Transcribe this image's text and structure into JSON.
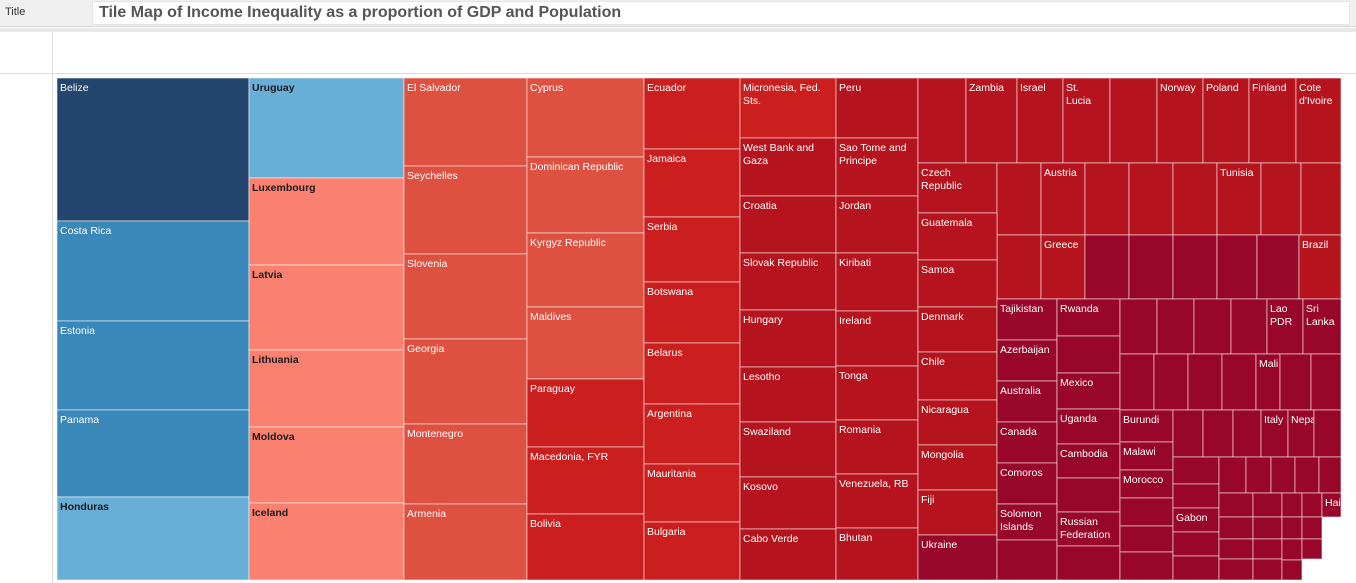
{
  "header": {
    "caption": "Title",
    "title": "Tile Map of Income Inequality as a proportion of GDP and Population"
  },
  "colors": {
    "navy": "#24456d",
    "blue_mid": "#3a87b9",
    "blue_light": "#68afd8",
    "salmon": "#fa8070",
    "red_orange": "#de5040",
    "red": "#cb1f1f",
    "red_deep": "#b5141e",
    "crimson": "#98062a"
  },
  "chart_data": {
    "type": "treemap",
    "title": "Tile Map of Income Inequality as a proportion of GDP and Population",
    "legend": "none",
    "tiles": [
      {
        "label": "Belize",
        "color": "navy"
      },
      {
        "label": "Costa Rica",
        "color": "blue_mid"
      },
      {
        "label": "Estonia",
        "color": "blue_mid"
      },
      {
        "label": "Panama",
        "color": "blue_mid"
      },
      {
        "label": "Honduras",
        "color": "blue_light"
      },
      {
        "label": "Uruguay",
        "color": "blue_light"
      },
      {
        "label": "Luxembourg",
        "color": "salmon"
      },
      {
        "label": "Latvia",
        "color": "salmon"
      },
      {
        "label": "Lithuania",
        "color": "salmon"
      },
      {
        "label": "Moldova",
        "color": "salmon"
      },
      {
        "label": "Iceland",
        "color": "salmon"
      },
      {
        "label": "El Salvador",
        "color": "red_orange"
      },
      {
        "label": "Seychelles",
        "color": "red_orange"
      },
      {
        "label": "Slovenia",
        "color": "red_orange"
      },
      {
        "label": "Georgia",
        "color": "red_orange"
      },
      {
        "label": "Montenegro",
        "color": "red_orange"
      },
      {
        "label": "Armenia",
        "color": "red_orange"
      },
      {
        "label": "Cyprus",
        "color": "red_orange"
      },
      {
        "label": "Dominican Republic",
        "color": "red_orange"
      },
      {
        "label": "Kyrgyz Republic",
        "color": "red_orange"
      },
      {
        "label": "Maldives",
        "color": "red_orange"
      },
      {
        "label": "Paraguay",
        "color": "red"
      },
      {
        "label": "Macedonia, FYR",
        "color": "red"
      },
      {
        "label": "Bolivia",
        "color": "red"
      },
      {
        "label": "Ecuador",
        "color": "red"
      },
      {
        "label": "Jamaica",
        "color": "red"
      },
      {
        "label": "Serbia",
        "color": "red"
      },
      {
        "label": "Botswana",
        "color": "red"
      },
      {
        "label": "Belarus",
        "color": "red"
      },
      {
        "label": "Argentina",
        "color": "red"
      },
      {
        "label": "Mauritania",
        "color": "red"
      },
      {
        "label": "Bulgaria",
        "color": "red"
      },
      {
        "label": "Micronesia, Fed. Sts.",
        "color": "red"
      },
      {
        "label": "West Bank and Gaza",
        "color": "red_deep"
      },
      {
        "label": "Croatia",
        "color": "red_deep"
      },
      {
        "label": "Slovak Republic",
        "color": "red_deep"
      },
      {
        "label": "Hungary",
        "color": "red_deep"
      },
      {
        "label": "Lesotho",
        "color": "red_deep"
      },
      {
        "label": "Swaziland",
        "color": "red_deep"
      },
      {
        "label": "Kosovo",
        "color": "red_deep"
      },
      {
        "label": "Cabo Verde",
        "color": "red_deep"
      },
      {
        "label": "Peru",
        "color": "red_deep"
      },
      {
        "label": "Sao Tome and Principe",
        "color": "red_deep"
      },
      {
        "label": "Jordan",
        "color": "red_deep"
      },
      {
        "label": "Kiribati",
        "color": "red_deep"
      },
      {
        "label": "Ireland",
        "color": "red_deep"
      },
      {
        "label": "Tonga",
        "color": "red_deep"
      },
      {
        "label": "Romania",
        "color": "red_deep"
      },
      {
        "label": "Venezuela, RB",
        "color": "red_deep"
      },
      {
        "label": "Bhutan",
        "color": "red_deep"
      },
      {
        "label": "",
        "color": "red_deep"
      },
      {
        "label": "Zambia",
        "color": "red_deep"
      },
      {
        "label": "Israel",
        "color": "red_deep"
      },
      {
        "label": "St. Lucia",
        "color": "red_deep"
      },
      {
        "label": "",
        "color": "red_deep"
      },
      {
        "label": "Norway",
        "color": "red_deep"
      },
      {
        "label": "Poland",
        "color": "red_deep"
      },
      {
        "label": "Finland",
        "color": "red_deep"
      },
      {
        "label": "Cote d'Ivoire",
        "color": "red_deep"
      },
      {
        "label": "Czech Republic",
        "color": "red_deep"
      },
      {
        "label": "",
        "color": "red_deep"
      },
      {
        "label": "Austria",
        "color": "red_deep"
      },
      {
        "label": "",
        "color": "red_deep"
      },
      {
        "label": "",
        "color": "red_deep"
      },
      {
        "label": "",
        "color": "red_deep"
      },
      {
        "label": "Tunisia",
        "color": "red_deep"
      },
      {
        "label": "",
        "color": "red_deep"
      },
      {
        "label": "",
        "color": "red_deep"
      },
      {
        "label": "",
        "color": "red_deep"
      },
      {
        "label": "Greece",
        "color": "red_deep"
      },
      {
        "label": "",
        "color": "crimson"
      },
      {
        "label": "",
        "color": "crimson"
      },
      {
        "label": "",
        "color": "crimson"
      },
      {
        "label": "",
        "color": "crimson"
      },
      {
        "label": "",
        "color": "crimson"
      },
      {
        "label": "Brazil",
        "color": "red_deep"
      },
      {
        "label": "Guatemala",
        "color": "red_deep"
      },
      {
        "label": "Samoa",
        "color": "red_deep"
      },
      {
        "label": "Denmark",
        "color": "red_deep"
      },
      {
        "label": "Chile",
        "color": "red_deep"
      },
      {
        "label": "Nicaragua",
        "color": "red_deep"
      },
      {
        "label": "Mongolia",
        "color": "red_deep"
      },
      {
        "label": "Fiji",
        "color": "red_deep"
      },
      {
        "label": "Ukraine",
        "color": "crimson"
      },
      {
        "label": "Tajikistan",
        "color": "crimson"
      },
      {
        "label": "Azerbaijan",
        "color": "crimson"
      },
      {
        "label": "Australia",
        "color": "crimson"
      },
      {
        "label": "Canada",
        "color": "crimson"
      },
      {
        "label": "Comoros",
        "color": "crimson"
      },
      {
        "label": "Solomon Islands",
        "color": "crimson"
      },
      {
        "label": "",
        "color": "crimson"
      },
      {
        "label": "Rwanda",
        "color": "crimson"
      },
      {
        "label": "",
        "color": "crimson"
      },
      {
        "label": "Mexico",
        "color": "crimson"
      },
      {
        "label": "Uganda",
        "color": "crimson"
      },
      {
        "label": "Cambodia",
        "color": "crimson"
      },
      {
        "label": "",
        "color": "crimson"
      },
      {
        "label": "Russian Federation",
        "color": "crimson"
      },
      {
        "label": "",
        "color": "crimson"
      },
      {
        "label": "",
        "color": "crimson"
      },
      {
        "label": "",
        "color": "crimson"
      },
      {
        "label": "",
        "color": "crimson"
      },
      {
        "label": "",
        "color": "crimson"
      },
      {
        "label": "Lao PDR",
        "color": "crimson"
      },
      {
        "label": "Sri Lanka",
        "color": "crimson"
      },
      {
        "label": "",
        "color": "crimson"
      },
      {
        "label": "",
        "color": "crimson"
      },
      {
        "label": "",
        "color": "crimson"
      },
      {
        "label": "",
        "color": "crimson"
      },
      {
        "label": "Mali",
        "color": "crimson"
      },
      {
        "label": "",
        "color": "crimson"
      },
      {
        "label": "",
        "color": "crimson"
      },
      {
        "label": "Burundi",
        "color": "crimson"
      },
      {
        "label": "Malawi",
        "color": "crimson"
      },
      {
        "label": "Morocco",
        "color": "crimson"
      },
      {
        "label": "",
        "color": "crimson"
      },
      {
        "label": "",
        "color": "crimson"
      },
      {
        "label": "",
        "color": "crimson"
      },
      {
        "label": "",
        "color": "crimson"
      },
      {
        "label": "",
        "color": "crimson"
      },
      {
        "label": "",
        "color": "crimson"
      },
      {
        "label": "Italy",
        "color": "crimson"
      },
      {
        "label": "Nepal",
        "color": "crimson"
      },
      {
        "label": "",
        "color": "crimson"
      },
      {
        "label": "",
        "color": "crimson"
      },
      {
        "label": "",
        "color": "crimson"
      },
      {
        "label": "Gabon",
        "color": "crimson"
      },
      {
        "label": "",
        "color": "crimson"
      },
      {
        "label": "",
        "color": "crimson"
      },
      {
        "label": "",
        "color": "crimson"
      },
      {
        "label": "",
        "color": "crimson"
      },
      {
        "label": "",
        "color": "crimson"
      },
      {
        "label": "",
        "color": "crimson"
      },
      {
        "label": "",
        "color": "crimson"
      },
      {
        "label": "",
        "color": "crimson"
      },
      {
        "label": "",
        "color": "crimson"
      },
      {
        "label": "",
        "color": "crimson"
      },
      {
        "label": "",
        "color": "crimson"
      },
      {
        "label": "Haiti",
        "color": "crimson"
      },
      {
        "label": "",
        "color": "crimson"
      },
      {
        "label": "",
        "color": "crimson"
      },
      {
        "label": "",
        "color": "crimson"
      },
      {
        "label": "",
        "color": "crimson"
      },
      {
        "label": "",
        "color": "crimson"
      },
      {
        "label": "",
        "color": "crimson"
      },
      {
        "label": "",
        "color": "crimson"
      },
      {
        "label": "",
        "color": "crimson"
      },
      {
        "label": "",
        "color": "crimson"
      },
      {
        "label": "",
        "color": "crimson"
      },
      {
        "label": "",
        "color": "crimson"
      }
    ]
  }
}
